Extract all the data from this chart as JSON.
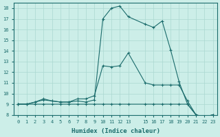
{
  "xlabel": "Humidex (Indice chaleur)",
  "bg_color": "#cceee8",
  "line_color": "#1a6b6b",
  "grid_color": "#aad8d0",
  "xlim": [
    -0.5,
    23.5
  ],
  "ylim": [
    8,
    18.5
  ],
  "xticks": [
    0,
    1,
    2,
    3,
    4,
    5,
    6,
    7,
    8,
    9,
    10,
    11,
    12,
    13,
    15,
    16,
    17,
    18,
    19,
    20,
    21,
    22,
    23
  ],
  "yticks": [
    8,
    9,
    10,
    11,
    12,
    13,
    14,
    15,
    16,
    17,
    18
  ],
  "series": [
    {
      "x": [
        0,
        1,
        2,
        3,
        4,
        5,
        6,
        7,
        8,
        9,
        10,
        11,
        12,
        13,
        15,
        16,
        17,
        18,
        19,
        20,
        21,
        22,
        23
      ],
      "y": [
        9,
        9,
        9.2,
        9.4,
        9.3,
        9.2,
        9.2,
        9.3,
        9.2,
        9.4,
        17.0,
        18.0,
        18.2,
        17.2,
        16.5,
        16.2,
        16.8,
        14.1,
        11.1,
        9.0,
        8.0,
        7.8,
        8.0
      ]
    },
    {
      "x": [
        0,
        1,
        2,
        3,
        4,
        5,
        6,
        7,
        8,
        9,
        10,
        11,
        12,
        13,
        15,
        16,
        17,
        18,
        19,
        20,
        21,
        22,
        23
      ],
      "y": [
        9,
        9,
        9.2,
        9.5,
        9.3,
        9.2,
        9.2,
        9.5,
        9.5,
        9.8,
        12.6,
        12.5,
        12.6,
        13.8,
        11.0,
        10.8,
        10.8,
        10.8,
        10.8,
        9.3,
        8.0,
        7.8,
        8.0
      ]
    },
    {
      "x": [
        0,
        1,
        2,
        3,
        4,
        5,
        6,
        7,
        8,
        9,
        10,
        11,
        12,
        13,
        15,
        16,
        17,
        18,
        19,
        20,
        21,
        22,
        23
      ],
      "y": [
        9,
        9,
        9.0,
        9.0,
        9.0,
        9.0,
        9.0,
        9.0,
        9.0,
        9.0,
        9.0,
        9.0,
        9.0,
        9.0,
        9.0,
        9.0,
        9.0,
        9.0,
        9.0,
        9.0,
        8.0,
        7.8,
        8.0
      ]
    }
  ]
}
